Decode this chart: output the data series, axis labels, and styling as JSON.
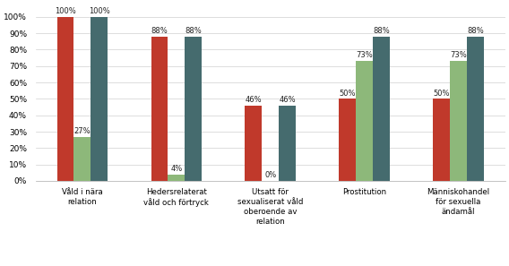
{
  "categories": [
    "Våld i nära\nrelation",
    "Hedersrelaterat\nvåld och förtryck",
    "Utsatt för\nsexualiserat våld\noberoende av\nrelation",
    "Prostitution",
    "Människohandel\nför sexuella\nändamål"
  ],
  "series": {
    "Enskilt": [
      100,
      88,
      46,
      50,
      50
    ],
    "Samverkan": [
      27,
      4,
      0,
      73,
      73
    ],
    "Antingen enskilt eller i samverkan": [
      100,
      88,
      46,
      88,
      88
    ]
  },
  "colors": {
    "Enskilt": "#C0392B",
    "Samverkan": "#8DB87A",
    "Antingen enskilt eller i samverkan": "#456B6E"
  },
  "bar_width": 0.18,
  "ylim": [
    0,
    108
  ],
  "yticks": [
    0,
    10,
    20,
    30,
    40,
    50,
    60,
    70,
    80,
    90,
    100
  ],
  "ytick_labels": [
    "0%",
    "10%",
    "20%",
    "30%",
    "40%",
    "50%",
    "60%",
    "70%",
    "80%",
    "90%",
    "100%"
  ],
  "label_fontsize": 6.2,
  "tick_fontsize": 6.5,
  "legend_fontsize": 7.0,
  "value_fontsize": 6.0
}
